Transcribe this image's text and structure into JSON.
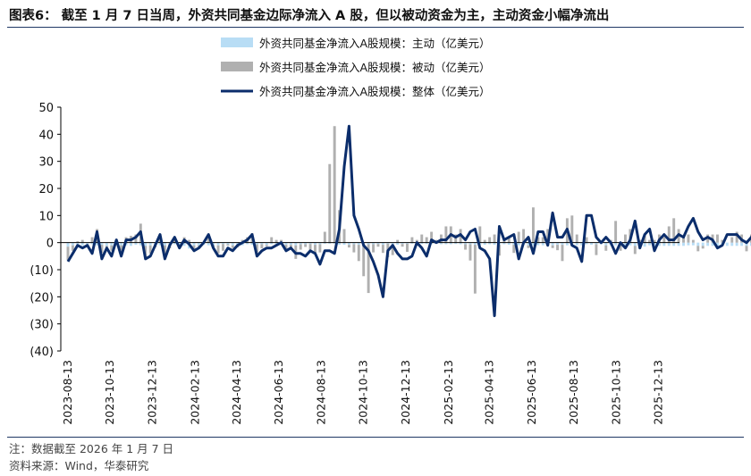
{
  "title": "图表6： 截至 1 月 7 日当周，外资共同基金边际净流入 A 股，但以被动资金为主，主动资金小幅净流出",
  "footnote": "注：数据截至 2026 年 1 月 7 日",
  "source": "资料来源：Wind，华泰研究",
  "colors": {
    "active": "#b8ddf5",
    "passive": "#b0b0b0",
    "total": "#0b2d6b",
    "axis": "#000000",
    "rule": "#1f3864"
  },
  "chart_data": {
    "type": "bar",
    "combo": "stacked bars (active, passive) + line (total)",
    "ylim": [
      -40,
      50
    ],
    "yticks": [
      50,
      40,
      30,
      20,
      10,
      0,
      -10,
      -20,
      -30,
      -40
    ],
    "ytick_labels": [
      "50",
      "40",
      "30",
      "20",
      "10",
      "0",
      "(10)",
      "(20)",
      "(30)",
      "(40)"
    ],
    "xticks": [
      "2023-08-13",
      "2023-10-13",
      "2023-12-13",
      "2024-02-13",
      "2024-04-13",
      "2024-06-13",
      "2024-08-13",
      "2024-10-13",
      "2024-12-13",
      "2025-02-13",
      "2025-04-13",
      "2025-06-13",
      "2025-08-13",
      "2025-10-13",
      "2025-12-13"
    ],
    "legend_position": "top-center",
    "x_start": "2023-08-13",
    "x_step_days": 7,
    "series": [
      {
        "name": "外资共同基金净流入A股规模：主动（亿美元）",
        "kind": "bar",
        "values": [
          -1.5,
          -1,
          -0.8,
          -1,
          -1.2,
          -0.6,
          -1,
          -0.8,
          -1.2,
          -1,
          -0.8,
          -1,
          -1,
          -1.2,
          -0.8,
          -1,
          -1.2,
          -1,
          -0.8,
          -1,
          -1,
          -0.6,
          -0.6,
          -1,
          -1.2,
          -2.2,
          -1,
          -1,
          -0.8,
          -1,
          -1,
          -1,
          -0.5,
          -0.6,
          -1,
          -0.8,
          -1,
          -0.6,
          -0.8,
          -0.6,
          -0.6,
          -0.8,
          -0.6,
          -0.6,
          -0.6,
          -0.8,
          -0.8,
          -1,
          -0.6,
          -0.6,
          -0.5,
          -0.8,
          -0.6,
          -0.4,
          -0.4,
          -0.4,
          -0.8,
          -0.8,
          -0.8,
          -0.6,
          -0.8,
          -0.4,
          -0.6,
          -0.6,
          -0.5,
          -0.8,
          -0.4,
          -0.6,
          -0.8,
          -0.5,
          -0.4,
          -0.4,
          -0.6,
          -0.5,
          -0.5,
          -0.6,
          -0.4,
          -0.6,
          -0.6,
          -0.6,
          -0.5,
          -0.6,
          -0.6,
          -0.6,
          -0.8,
          -0.8,
          -0.8,
          -0.6,
          -0.8,
          -0.8,
          -0.6,
          -0.8,
          -0.8,
          -1,
          -0.8,
          -1,
          -1,
          -1,
          -1,
          -1,
          -1,
          -0.8,
          -0.8,
          -1,
          -1,
          -1,
          -1,
          -0.6,
          -0.8,
          -0.6,
          -0.6,
          -1,
          -1,
          -1,
          -1,
          -1,
          -1,
          -1.2,
          -1.2,
          -1.5,
          -1,
          -1,
          -1.2,
          -1.2,
          -1.2,
          -1.2,
          -1.2,
          -1.2,
          -1,
          -1,
          -1.2,
          -1.2,
          -1.2,
          -1.2,
          -1.2,
          -1.2,
          -1.2,
          -1.2,
          -1.2,
          -1.2,
          -1.2,
          -1.2,
          -1
        ]
      },
      {
        "name": "外资共同基金净流入A股规模：被动（亿美元）",
        "kind": "bar",
        "values": [
          -5,
          -2,
          0.5,
          1,
          -0.5,
          2,
          5,
          -3,
          -1,
          -2,
          1,
          -2,
          2,
          2.5,
          3,
          7,
          -4,
          -3,
          -1,
          3,
          -4,
          -1.5,
          2,
          -1,
          2,
          1,
          -2,
          -0.5,
          0,
          3,
          -0.5,
          -3,
          -2.5,
          -0.5,
          -1,
          -1,
          1,
          2,
          3.5,
          -3,
          -1.5,
          -0.5,
          2,
          1,
          1,
          -2,
          -1,
          -5,
          -2,
          -1,
          -2.5,
          -3,
          -3,
          4,
          29,
          43,
          12,
          5,
          -1,
          -3,
          -6,
          -12,
          -18,
          -3,
          -1,
          -3,
          -5,
          -4,
          1,
          -1,
          -3,
          2,
          1,
          3,
          2,
          4,
          1,
          3,
          6,
          6,
          3,
          5,
          -2,
          -6,
          -18,
          6,
          1,
          2,
          3,
          -4,
          1,
          2,
          -3,
          4,
          5,
          -1,
          13,
          2,
          2,
          5,
          -1,
          -2,
          -6,
          9,
          10,
          3,
          0,
          2,
          0,
          -4,
          0,
          -2,
          1,
          8,
          -2,
          3,
          5,
          -3,
          1,
          3,
          1,
          1,
          3,
          2,
          6,
          9,
          5,
          2,
          3,
          1,
          -2,
          -1,
          3,
          3,
          3,
          1,
          0,
          2,
          4,
          3,
          -2,
          3,
          8
        ]
      },
      {
        "name": "外资共同基金净流入A股规模：整体（亿美元）",
        "kind": "line",
        "values": [
          -7,
          -4,
          -1,
          -2,
          -1,
          -4,
          4,
          -6,
          -2,
          -5,
          1,
          -5,
          1,
          1,
          2,
          4,
          -6,
          -5,
          -1,
          3,
          -6,
          -1,
          2,
          -2,
          1,
          -0.5,
          -3,
          -2,
          0,
          3,
          -2,
          -5,
          -5,
          -2,
          -3,
          -1,
          0,
          1,
          3,
          -5,
          -3,
          -2,
          -2,
          -1,
          0,
          -3,
          -2,
          -4,
          -4,
          -5,
          -3,
          -4,
          -8,
          -3,
          -3,
          -4,
          5,
          28,
          43,
          10,
          5,
          -1,
          -3,
          -7,
          -12,
          -20,
          -3,
          -1,
          -4,
          -6,
          -6,
          -5,
          0,
          -2,
          -5,
          1,
          0,
          1,
          1,
          3,
          2,
          3,
          1,
          4,
          5,
          -2,
          -3,
          -6,
          -27,
          6,
          1,
          2,
          3,
          -6,
          0,
          2,
          -4,
          4,
          4,
          -1,
          11,
          2,
          2,
          5,
          -1,
          -2,
          -7,
          10,
          10,
          2,
          0,
          2,
          0,
          -4,
          0,
          -2,
          1,
          8,
          -2,
          3,
          5,
          -3,
          1,
          3,
          1,
          1,
          3,
          2,
          6,
          9,
          4,
          1,
          2,
          1,
          -2,
          -1,
          3,
          3,
          3,
          1,
          0,
          2,
          4,
          3,
          -2,
          3,
          7
        ]
      }
    ],
    "xlabel": "",
    "ylabel": ""
  }
}
